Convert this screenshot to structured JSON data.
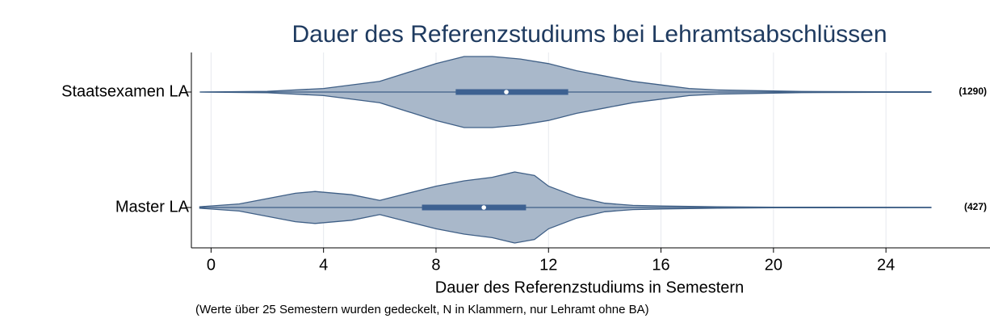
{
  "chart_data": {
    "type": "violin",
    "title": "Dauer des Referenzstudiums bei Lehramtsabschlüssen",
    "xlabel": "Dauer des Referenzstudiums in Semestern",
    "note": "(Werte über 25 Semestern wurden gedeckelt, N in Klammern, nur Lehramt ohne BA)",
    "orientation": "horizontal",
    "xlim": [
      -0.7,
      27.7
    ],
    "xticks": [
      0,
      4,
      8,
      12,
      16,
      20,
      24
    ],
    "grid": true,
    "fill": "#a9b8ca",
    "stroke": "#3f5f86",
    "box_color": "#3d6191",
    "series": [
      {
        "name": "Staatsexamen LA",
        "n_label": "(1290)",
        "min": -0.4,
        "max": 25.6,
        "q1": 8.7,
        "median": 10.5,
        "q3": 12.7,
        "density_x": [
          -0.4,
          2,
          4,
          6,
          7,
          8,
          9,
          10,
          11,
          12,
          13,
          14,
          15,
          16,
          17,
          18,
          20,
          21,
          24,
          25.6
        ],
        "density": [
          0,
          0.02,
          0.1,
          0.3,
          0.55,
          0.8,
          1,
          1,
          0.93,
          0.8,
          0.6,
          0.45,
          0.3,
          0.2,
          0.1,
          0.06,
          0.03,
          0.015,
          0.01,
          0.01
        ]
      },
      {
        "name": "Master LA",
        "n_label": "(427)",
        "min": -0.4,
        "max": 25.6,
        "q1": 7.5,
        "median": 9.7,
        "q3": 11.2,
        "density_x": [
          -0.4,
          1,
          2,
          3,
          3.7,
          5,
          6,
          7,
          8,
          9,
          10,
          10.8,
          11.5,
          12,
          13,
          14,
          15,
          16,
          18,
          20,
          25.6
        ],
        "density": [
          0.02,
          0.1,
          0.25,
          0.4,
          0.45,
          0.36,
          0.2,
          0.4,
          0.6,
          0.75,
          0.85,
          1,
          0.9,
          0.6,
          0.3,
          0.12,
          0.06,
          0.04,
          0.02,
          0.01,
          0.005
        ]
      }
    ]
  }
}
